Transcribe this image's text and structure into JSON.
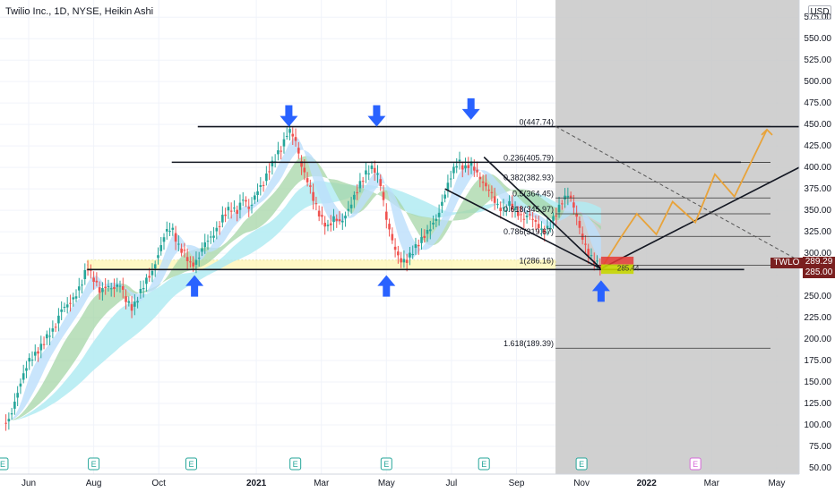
{
  "header": {
    "title": "Twilio Inc., 1D, NYSE, Heikin Ashi"
  },
  "price_scale": {
    "currency_label": "USD"
  },
  "price_tags": {
    "ticker": "TWLO",
    "last": "289.29",
    "level": "285.00"
  },
  "chart_data": {
    "type": "candlestick",
    "title": "Twilio Inc., 1D, NYSE, Heikin Ashi",
    "yticks": [
      575,
      550,
      525,
      500,
      475,
      450,
      425,
      400,
      375,
      350,
      325,
      300,
      275,
      250,
      225,
      200,
      175,
      150,
      125,
      100,
      75,
      50
    ],
    "ytick_labels": [
      "575.00",
      "550.00",
      "525.00",
      "500.00",
      "475.00",
      "450.00",
      "425.00",
      "400.00",
      "375.00",
      "350.00",
      "325.00",
      "300.00",
      "275.00",
      "250.00",
      "225.00",
      "200.00",
      "175.00",
      "150.00",
      "125.00",
      "100.00",
      "75.00",
      "50.00"
    ],
    "xticks": [
      {
        "label": "Jun",
        "t": 0.0
      },
      {
        "label": "Aug",
        "t": 2.0
      },
      {
        "label": "Oct",
        "t": 4.0
      },
      {
        "label": "2021",
        "t": 7.0
      },
      {
        "label": "Mar",
        "t": 9.0
      },
      {
        "label": "May",
        "t": 11.0
      },
      {
        "label": "Jul",
        "t": 13.0
      },
      {
        "label": "Sep",
        "t": 15.0
      },
      {
        "label": "Nov",
        "t": 17.0
      },
      {
        "label": "2022",
        "t": 19.0
      },
      {
        "label": "Mar",
        "t": 21.0
      },
      {
        "label": "May",
        "t": 23.0
      }
    ],
    "fibonacci": [
      {
        "ratio": "0",
        "price": 447.74,
        "label": "0(447.74)"
      },
      {
        "ratio": "0.236",
        "price": 405.79,
        "label": "0.236(405.79)"
      },
      {
        "ratio": "0.382",
        "price": 382.93,
        "label": "0.382(382.93)"
      },
      {
        "ratio": "0.5",
        "price": 364.45,
        "label": "0.5(364.45)"
      },
      {
        "ratio": "0.618",
        "price": 345.97,
        "label": "0.618(345.97)"
      },
      {
        "ratio": "0.786",
        "price": 319.67,
        "label": "0.786(319.67)"
      },
      {
        "ratio": "1",
        "price": 286.16,
        "label": "1(286.16)"
      },
      {
        "ratio": "1.618",
        "price": 189.39,
        "label": "1.618(189.39)"
      }
    ],
    "price_path": [
      [
        -0.6,
        105
      ],
      [
        -0.4,
        130
      ],
      [
        -0.2,
        155
      ],
      [
        0.0,
        175
      ],
      [
        0.2,
        182
      ],
      [
        0.4,
        192
      ],
      [
        0.6,
        205
      ],
      [
        0.8,
        212
      ],
      [
        1.0,
        235
      ],
      [
        1.2,
        240
      ],
      [
        1.4,
        248
      ],
      [
        1.6,
        262
      ],
      [
        1.8,
        285
      ],
      [
        2.0,
        270
      ],
      [
        2.2,
        255
      ],
      [
        2.4,
        262
      ],
      [
        2.6,
        258
      ],
      [
        2.8,
        265
      ],
      [
        3.0,
        245
      ],
      [
        3.2,
        235
      ],
      [
        3.4,
        252
      ],
      [
        3.6,
        268
      ],
      [
        3.8,
        278
      ],
      [
        4.0,
        300
      ],
      [
        4.2,
        325
      ],
      [
        4.4,
        330
      ],
      [
        4.6,
        308
      ],
      [
        4.8,
        300
      ],
      [
        5.0,
        285
      ],
      [
        5.2,
        292
      ],
      [
        5.4,
        312
      ],
      [
        5.6,
        318
      ],
      [
        5.8,
        328
      ],
      [
        6.0,
        345
      ],
      [
        6.2,
        353
      ],
      [
        6.4,
        348
      ],
      [
        6.6,
        365
      ],
      [
        6.8,
        350
      ],
      [
        7.0,
        372
      ],
      [
        7.2,
        380
      ],
      [
        7.4,
        398
      ],
      [
        7.6,
        412
      ],
      [
        7.8,
        425
      ],
      [
        8.0,
        445
      ],
      [
        8.2,
        432
      ],
      [
        8.4,
        400
      ],
      [
        8.6,
        382
      ],
      [
        8.8,
        358
      ],
      [
        9.0,
        340
      ],
      [
        9.2,
        330
      ],
      [
        9.4,
        342
      ],
      [
        9.6,
        335
      ],
      [
        9.8,
        348
      ],
      [
        10.0,
        365
      ],
      [
        10.2,
        382
      ],
      [
        10.4,
        395
      ],
      [
        10.6,
        400
      ],
      [
        10.8,
        385
      ],
      [
        11.0,
        340
      ],
      [
        11.2,
        312
      ],
      [
        11.4,
        292
      ],
      [
        11.6,
        290
      ],
      [
        11.8,
        302
      ],
      [
        12.0,
        312
      ],
      [
        12.2,
        322
      ],
      [
        12.4,
        332
      ],
      [
        12.6,
        345
      ],
      [
        12.8,
        370
      ],
      [
        13.0,
        392
      ],
      [
        13.2,
        408
      ],
      [
        13.4,
        398
      ],
      [
        13.6,
        405
      ],
      [
        13.8,
        392
      ],
      [
        14.0,
        380
      ],
      [
        14.2,
        372
      ],
      [
        14.4,
        355
      ],
      [
        14.6,
        350
      ],
      [
        14.8,
        358
      ],
      [
        15.0,
        348
      ],
      [
        15.2,
        340
      ],
      [
        15.4,
        345
      ],
      [
        15.6,
        335
      ],
      [
        15.8,
        325
      ],
      [
        16.0,
        330
      ],
      [
        16.2,
        345
      ],
      [
        16.4,
        360
      ],
      [
        16.6,
        370
      ],
      [
        16.8,
        350
      ],
      [
        17.0,
        320
      ],
      [
        17.2,
        300
      ],
      [
        17.4,
        290
      ],
      [
        17.6,
        285
      ]
    ],
    "projection_path": [
      [
        17.6,
        282
      ],
      [
        18.2,
        318
      ],
      [
        18.7,
        346
      ],
      [
        19.3,
        322
      ],
      [
        19.8,
        360
      ],
      [
        20.5,
        336
      ],
      [
        21.1,
        392
      ],
      [
        21.7,
        366
      ],
      [
        22.7,
        444
      ]
    ],
    "horizontal_levels": [
      {
        "price": 447.5,
        "t0": 5.2,
        "t1": 25.0
      },
      {
        "price": 406.0,
        "t0": 4.4,
        "t1": 21.9
      },
      {
        "price": 281.0,
        "t0": 1.8,
        "t1": 22.0
      }
    ],
    "trendlines": [
      {
        "t0": 14.0,
        "p0": 412,
        "t1": 17.6,
        "p1": 282
      },
      {
        "t0": 12.8,
        "p0": 375,
        "t1": 17.6,
        "p1": 282
      },
      {
        "t0": 17.6,
        "p0": 282,
        "t1": 25.0,
        "p1": 400
      }
    ],
    "dashed_lines": [
      {
        "t0": 16.2,
        "p0": 447.74,
        "t1": 23.8,
        "p1": 289
      }
    ],
    "support_zone": {
      "p_low": 281,
      "p_high": 292
    },
    "projection_region": {
      "t_start": 16.2,
      "t_end": 23.9
    },
    "markers": {
      "down_arrows": [
        {
          "t": 8.0,
          "p": 460
        },
        {
          "t": 10.7,
          "p": 460
        },
        {
          "t": 13.6,
          "p": 468
        }
      ],
      "up_arrows": [
        {
          "t": 5.1,
          "p": 262
        },
        {
          "t": 11.0,
          "p": 262
        },
        {
          "t": 17.6,
          "p": 256
        }
      ]
    },
    "earnings_markers": [
      {
        "label": "E",
        "t": -0.8
      },
      {
        "label": "E",
        "t": 2.0
      },
      {
        "label": "E",
        "t": 5.0
      },
      {
        "label": "E",
        "t": 8.2
      },
      {
        "label": "E",
        "t": 11.0
      },
      {
        "label": "E",
        "t": 14.0
      },
      {
        "label": "E",
        "t": 17.0
      },
      {
        "label": "E",
        "t": 20.5
      }
    ],
    "position_box": {
      "t0": 17.6,
      "t1": 18.6,
      "p_entry": 287,
      "p_stop": 296,
      "p_target": 276,
      "label": "285.44"
    },
    "colors": {
      "bull": "#26a69a",
      "bear": "#ef5350",
      "level_line": "#131722",
      "projection": "#e8a33a",
      "region": "#c8c8c8",
      "arrow": "#2962ff",
      "zone": "#fff59d",
      "tag": "#7a1f1f"
    }
  }
}
